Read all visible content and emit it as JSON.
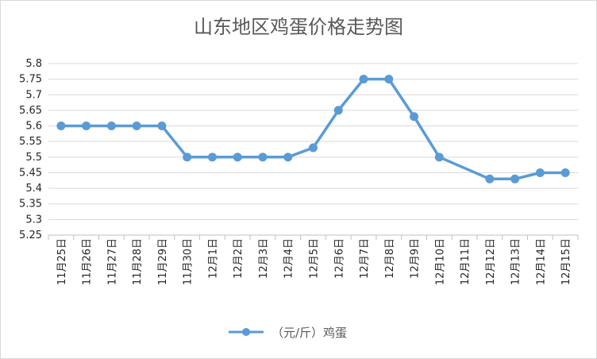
{
  "chart_data": {
    "type": "line",
    "title": "山东地区鸡蛋价格走势图",
    "categories": [
      "11月25日",
      "11月26日",
      "11月27日",
      "11月28日",
      "11月29日",
      "11月30日",
      "12月1日",
      "12月2日",
      "12月3日",
      "12月4日",
      "12月5日",
      "12月6日",
      "12月7日",
      "12月8日",
      "12月9日",
      "12月10日",
      "12月11日",
      "12月12日",
      "12月13日",
      "12月14日",
      "12月15日"
    ],
    "series": [
      {
        "name": "（元/斤）鸡蛋",
        "values": [
          5.6,
          5.6,
          5.6,
          5.6,
          5.6,
          5.5,
          5.5,
          5.5,
          5.5,
          5.5,
          5.53,
          5.65,
          5.75,
          5.75,
          5.63,
          5.5,
          null,
          5.43,
          5.43,
          5.45,
          5.45
        ],
        "color": "#5b9bd5"
      }
    ],
    "ylim": [
      5.25,
      5.8
    ],
    "yticks": [
      "5.25",
      "5.3",
      "5.35",
      "5.4",
      "5.45",
      "5.5",
      "5.55",
      "5.6",
      "5.65",
      "5.7",
      "5.75",
      "5.8"
    ],
    "grid": true,
    "legend": "bottom",
    "gridColor": "#d9d9d9"
  }
}
